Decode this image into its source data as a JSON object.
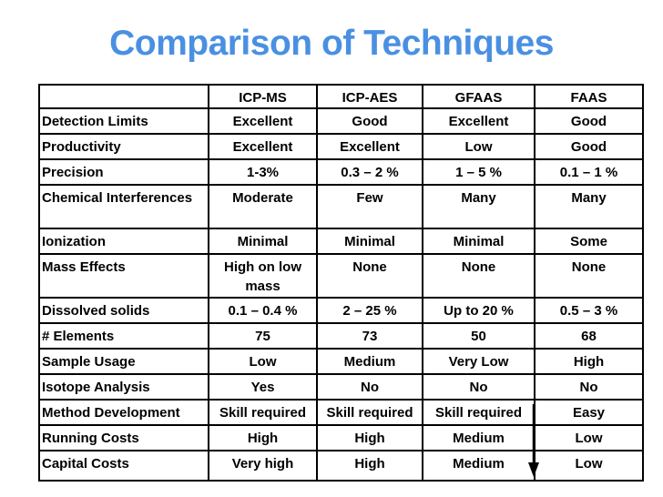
{
  "title": "Comparison of Techniques",
  "colors": {
    "title": "#4a90e2",
    "border": "#000000",
    "text": "#000000",
    "background": "#ffffff",
    "arrow": "#000000"
  },
  "table": {
    "header": [
      "",
      "ICP-MS",
      "ICP-AES",
      "GFAAS",
      "FAAS"
    ],
    "rows": [
      {
        "label": "Detection Limits",
        "values": [
          "Excellent",
          "Good",
          "Excellent",
          "Good"
        ]
      },
      {
        "label": "Productivity",
        "values": [
          "Excellent",
          "Excellent",
          "Low",
          "Good"
        ]
      },
      {
        "label": "Precision",
        "values": [
          "1-3%",
          "0.3 – 2 %",
          "1 – 5 %",
          "0.1 – 1 %"
        ]
      },
      {
        "label": "Chemical Interferences",
        "values": [
          "Moderate",
          "Few",
          "Many",
          "Many"
        ]
      },
      {
        "label": "Ionization",
        "values": [
          "Minimal",
          "Minimal",
          "Minimal",
          "Some"
        ]
      },
      {
        "label": "Mass Effects",
        "values": [
          "High on low mass",
          "None",
          "None",
          "None"
        ]
      },
      {
        "label": "Dissolved solids",
        "values": [
          "0.1 – 0.4 %",
          "2 – 25 %",
          "Up to 20 %",
          "0.5 – 3 %"
        ]
      },
      {
        "label": "# Elements",
        "values": [
          "75",
          "73",
          "50",
          "68"
        ]
      },
      {
        "label": "Sample Usage",
        "values": [
          "Low",
          "Medium",
          "Very Low",
          "High"
        ]
      },
      {
        "label": "Isotope Analysis",
        "values": [
          "Yes",
          "No",
          "No",
          "No"
        ]
      },
      {
        "label": "Method Development",
        "values": [
          "Skill required",
          "Skill required",
          "Skill required",
          "Easy"
        ]
      },
      {
        "label": "Running Costs",
        "values": [
          "High",
          "High",
          "Medium",
          "Low"
        ]
      },
      {
        "label": "Capital Costs",
        "values": [
          "Very high",
          "High",
          "Medium",
          "Low"
        ]
      }
    ]
  },
  "annotations": {
    "down_arrow_icon": "down-arrow"
  }
}
